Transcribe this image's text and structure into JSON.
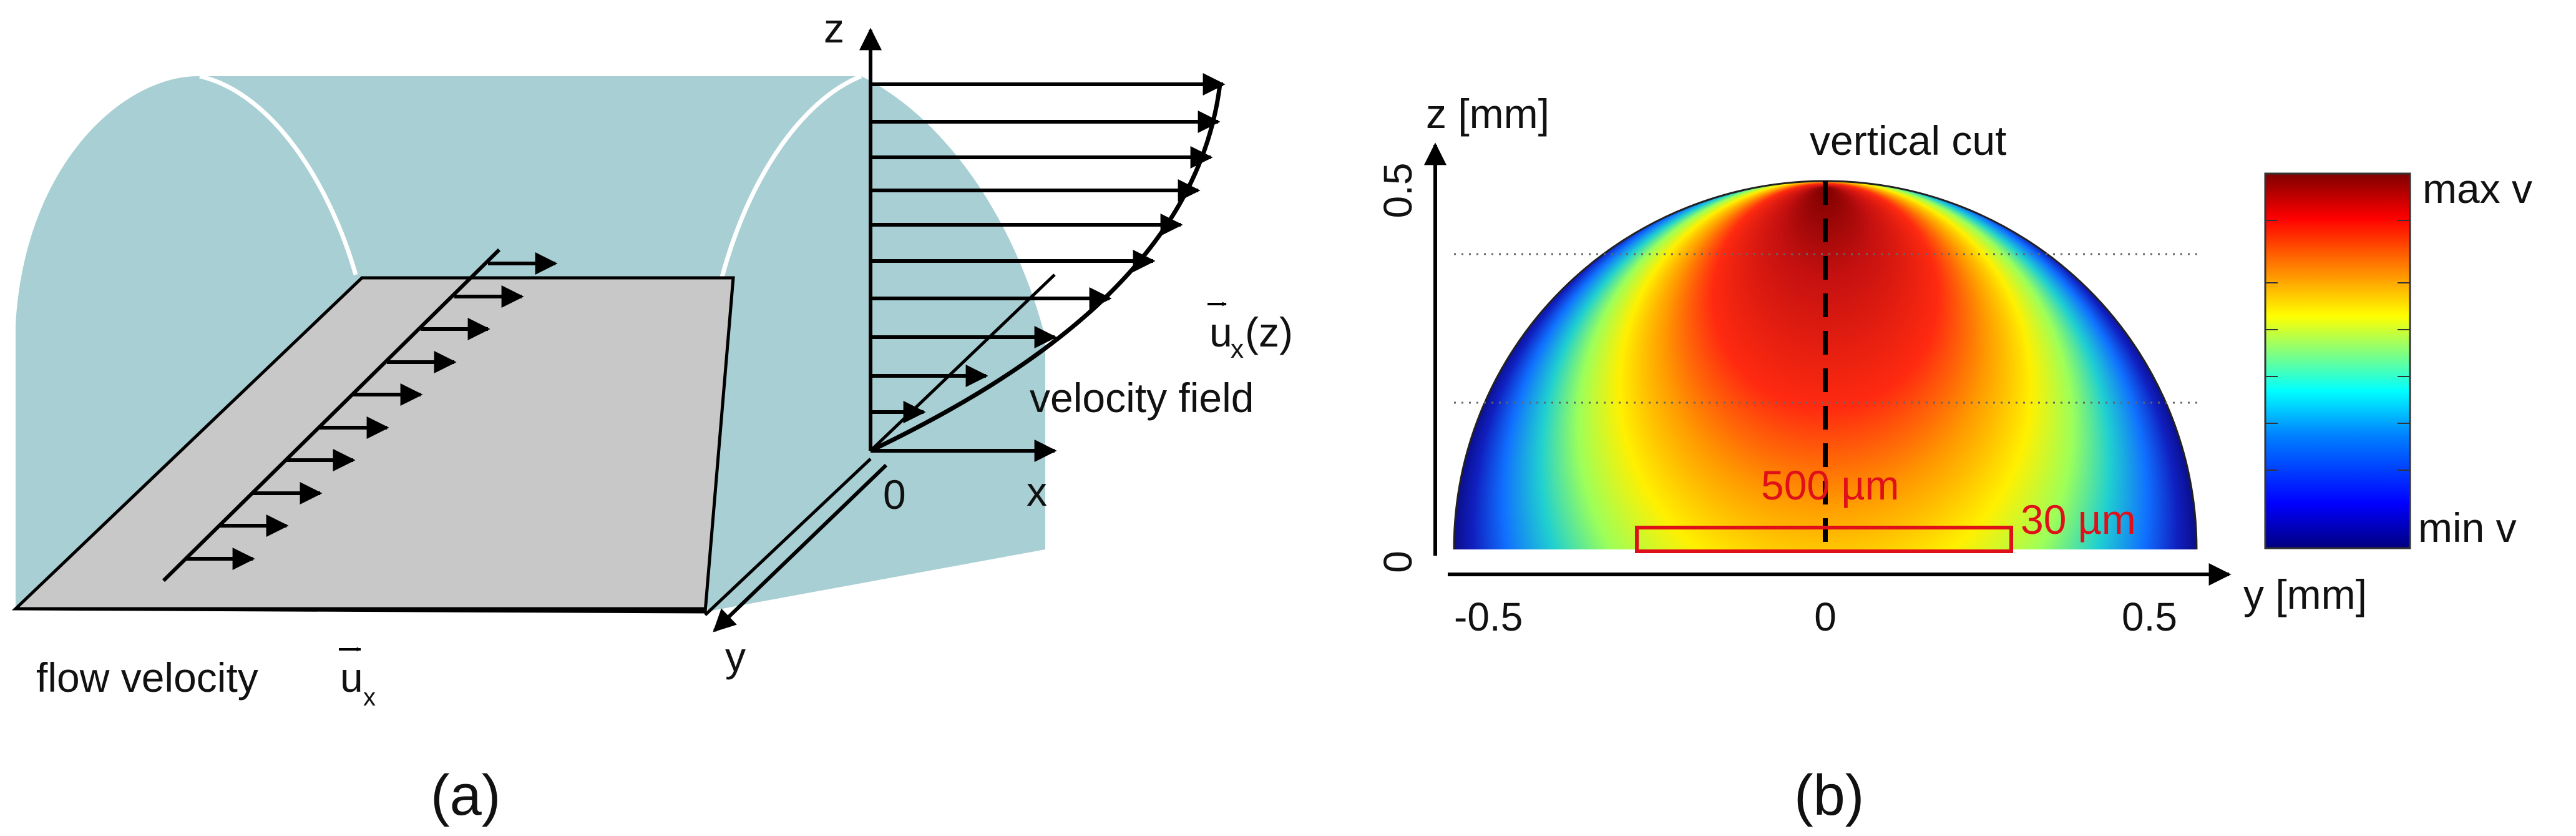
{
  "panel_a": {
    "caption": "(a)",
    "axis_z": "z",
    "axis_x": "x",
    "axis_y": "y",
    "origin": "0",
    "velocity_symbol": "u",
    "velocity_subscript": "x",
    "velocity_arg": "(z)",
    "velocity_field_label": "velocity field",
    "flow_velocity_label": "flow velocity",
    "channel_fill_color": "#a8cfd3",
    "floor_fill_color": "#c8c8c8"
  },
  "panel_b": {
    "caption": "(b)",
    "z_axis_label": "z [mm]",
    "y_axis_label": "y [mm]",
    "z_ticks": [
      "0",
      "0.5"
    ],
    "y_ticks": [
      "-0.5",
      "0",
      "0.5"
    ],
    "vertical_cut_label": "vertical cut",
    "width_annotation": "500 µm",
    "height_annotation": "30 µm",
    "colorbar_max_label": "max v",
    "colorbar_min_label": "min v",
    "annotation_color": "#e0101a",
    "colormap": [
      "#00007f",
      "#0000ff",
      "#0080ff",
      "#00ffff",
      "#80ff80",
      "#ffff00",
      "#ff8000",
      "#ff0000",
      "#7f0000"
    ]
  }
}
